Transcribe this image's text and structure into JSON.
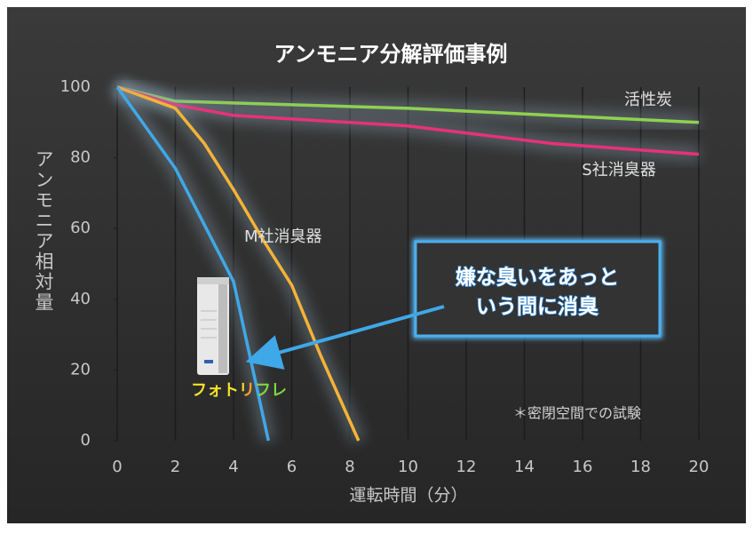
{
  "chart_data": {
    "type": "line",
    "title": "アンモニア分解評価事例",
    "xlabel": "運転時間（分）",
    "ylabel": "アンモニア相対量",
    "xlim": [
      0,
      20
    ],
    "xticks": [
      0,
      2,
      4,
      6,
      8,
      10,
      12,
      14,
      16,
      18,
      20
    ],
    "ylim": [
      0,
      100
    ],
    "yticks": [
      0,
      20,
      40,
      60,
      80,
      100
    ],
    "grid": "x",
    "series": [
      {
        "name": "活性炭",
        "color": "#8fd14f",
        "x": [
          0,
          2,
          10,
          20
        ],
        "values": [
          100,
          96,
          94,
          90
        ]
      },
      {
        "name": "S社消臭器",
        "color": "#e8317a",
        "x": [
          0,
          2,
          4,
          10,
          15,
          20
        ],
        "values": [
          100,
          95,
          92,
          89,
          84,
          81
        ]
      },
      {
        "name": "M社消臭器",
        "color": "#f5b335",
        "x": [
          0,
          2,
          3,
          4,
          5,
          6,
          7,
          8.3
        ],
        "values": [
          100,
          94,
          84,
          71,
          57,
          44,
          24,
          0
        ]
      },
      {
        "name": "フォトリフレ",
        "color": "#3fa8e8",
        "x": [
          0,
          2,
          3,
          4,
          5.2
        ],
        "values": [
          100,
          77,
          61,
          45,
          0
        ]
      }
    ],
    "annotations": {
      "callout": [
        "嫌な臭いをあっと",
        "いう間に消臭"
      ],
      "note": "＊密閉空間での試験"
    }
  }
}
